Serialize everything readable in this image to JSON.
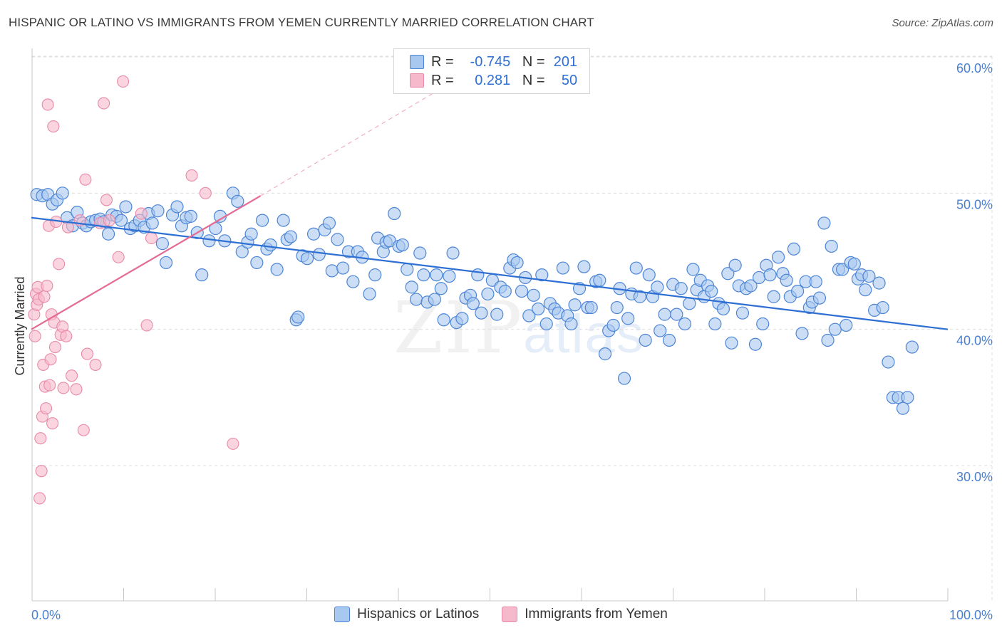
{
  "title": "HISPANIC OR LATINO VS IMMIGRANTS FROM YEMEN CURRENTLY MARRIED CORRELATION CHART",
  "source": "Source: ZipAtlas.com",
  "watermark": {
    "zip": "ZIP",
    "atlas": "atlas"
  },
  "legend_top": {
    "row1": {
      "r_label": "R =",
      "r_value": "-0.745",
      "n_label": "N =",
      "n_value": "201"
    },
    "row2": {
      "r_label": "R =",
      "r_value": "0.281",
      "n_label": "N =",
      "n_value": "50"
    }
  },
  "legend_bottom": {
    "series1": "Hispanics or Latinos",
    "series2": "Immigrants from Yemen"
  },
  "colors": {
    "blue_fill": "#a9c8f0",
    "blue_stroke": "#4d86d6",
    "blue_line": "#2e6fd4",
    "pink_fill": "#f6b9cc",
    "pink_stroke": "#e88aa8",
    "pink_line": "#e46a93",
    "grid": "#dedede",
    "tick_label": "#4a7fd0"
  },
  "chart_data": {
    "type": "scatter",
    "title": "HISPANIC OR LATINO VS IMMIGRANTS FROM YEMEN CURRENTLY MARRIED CORRELATION CHART",
    "xlabel": "",
    "ylabel": "Currently Married",
    "xlim": [
      0,
      100
    ],
    "ylim": [
      21,
      61
    ],
    "x_tick_labels": [
      "0.0%",
      "100.0%"
    ],
    "y_ticks": [
      30,
      40,
      50,
      60
    ],
    "y_tick_labels": [
      "30.0%",
      "40.0%",
      "50.0%",
      "60.0%"
    ],
    "grid": true,
    "legend": "bottom-center",
    "series": [
      {
        "name": "Hispanics or Latinos",
        "R": -0.745,
        "N": 201,
        "trend": {
          "x": [
            0,
            100
          ],
          "y": [
            48.2,
            40.0
          ],
          "style": "solid"
        },
        "points": [
          [
            0.6,
            49.9
          ],
          [
            1.2,
            49.8
          ],
          [
            1.8,
            49.9
          ],
          [
            2.3,
            49.2
          ],
          [
            2.8,
            49.5
          ],
          [
            3.4,
            50.0
          ],
          [
            3.9,
            48.2
          ],
          [
            4.5,
            47.6
          ],
          [
            5.0,
            48.6
          ],
          [
            5.6,
            47.8
          ],
          [
            6.0,
            47.6
          ],
          [
            6.5,
            47.9
          ],
          [
            7.0,
            48.0
          ],
          [
            7.5,
            48.1
          ],
          [
            7.9,
            47.9
          ],
          [
            8.4,
            47.0
          ],
          [
            8.8,
            48.4
          ],
          [
            9.3,
            48.3
          ],
          [
            9.8,
            48.0
          ],
          [
            10.3,
            49.0
          ],
          [
            10.8,
            47.4
          ],
          [
            11.3,
            47.6
          ],
          [
            11.8,
            48.0
          ],
          [
            12.3,
            47.5
          ],
          [
            12.8,
            48.5
          ],
          [
            13.2,
            47.8
          ],
          [
            13.8,
            48.7
          ],
          [
            14.3,
            46.3
          ],
          [
            14.7,
            44.9
          ],
          [
            15.4,
            48.4
          ],
          [
            15.9,
            49.0
          ],
          [
            16.4,
            47.6
          ],
          [
            16.9,
            48.2
          ],
          [
            17.4,
            48.3
          ],
          [
            18.1,
            47.1
          ],
          [
            18.6,
            44.0
          ],
          [
            19.4,
            46.5
          ],
          [
            20.1,
            47.4
          ],
          [
            20.6,
            48.3
          ],
          [
            21.1,
            46.5
          ],
          [
            22.0,
            50.0
          ],
          [
            22.5,
            49.4
          ],
          [
            23.0,
            45.7
          ],
          [
            23.6,
            46.4
          ],
          [
            24.0,
            47.0
          ],
          [
            24.6,
            44.9
          ],
          [
            25.2,
            48.0
          ],
          [
            25.7,
            45.9
          ],
          [
            26.1,
            46.2
          ],
          [
            26.8,
            44.4
          ],
          [
            27.5,
            48.0
          ],
          [
            27.9,
            46.6
          ],
          [
            28.3,
            46.8
          ],
          [
            28.9,
            40.7
          ],
          [
            29.1,
            40.9
          ],
          [
            29.6,
            45.4
          ],
          [
            30.1,
            45.2
          ],
          [
            30.8,
            47.0
          ],
          [
            31.4,
            45.5
          ],
          [
            32.0,
            47.3
          ],
          [
            32.5,
            47.8
          ],
          [
            32.8,
            44.3
          ],
          [
            33.4,
            46.6
          ],
          [
            34.0,
            44.5
          ],
          [
            34.6,
            45.7
          ],
          [
            35.1,
            43.5
          ],
          [
            35.6,
            45.7
          ],
          [
            36.1,
            45.3
          ],
          [
            36.9,
            42.6
          ],
          [
            37.5,
            44.0
          ],
          [
            37.8,
            46.7
          ],
          [
            38.4,
            45.7
          ],
          [
            38.7,
            46.4
          ],
          [
            39.1,
            46.5
          ],
          [
            39.6,
            48.5
          ],
          [
            40.1,
            46.1
          ],
          [
            40.5,
            46.2
          ],
          [
            41.0,
            44.4
          ],
          [
            41.5,
            43.1
          ],
          [
            42.0,
            42.2
          ],
          [
            42.4,
            45.6
          ],
          [
            42.8,
            44.0
          ],
          [
            43.2,
            42.0
          ],
          [
            44.0,
            42.2
          ],
          [
            44.2,
            44.0
          ],
          [
            44.7,
            43.0
          ],
          [
            45.0,
            40.7
          ],
          [
            45.6,
            43.9
          ],
          [
            46.0,
            45.6
          ],
          [
            46.4,
            40.5
          ],
          [
            47.0,
            40.8
          ],
          [
            47.4,
            42.3
          ],
          [
            47.9,
            42.5
          ],
          [
            48.2,
            41.9
          ],
          [
            48.7,
            44.0
          ],
          [
            49.1,
            41.2
          ],
          [
            49.8,
            42.6
          ],
          [
            50.3,
            43.6
          ],
          [
            50.8,
            41.1
          ],
          [
            51.2,
            43.1
          ],
          [
            51.7,
            42.8
          ],
          [
            52.2,
            44.5
          ],
          [
            52.6,
            45.1
          ],
          [
            53.0,
            44.9
          ],
          [
            53.5,
            42.8
          ],
          [
            53.9,
            43.8
          ],
          [
            54.3,
            41.0
          ],
          [
            54.8,
            42.5
          ],
          [
            55.3,
            41.5
          ],
          [
            55.7,
            44.0
          ],
          [
            56.2,
            40.4
          ],
          [
            56.6,
            41.9
          ],
          [
            57.1,
            41.5
          ],
          [
            57.5,
            41.2
          ],
          [
            58.0,
            44.5
          ],
          [
            58.5,
            41.0
          ],
          [
            58.9,
            40.4
          ],
          [
            59.3,
            41.8
          ],
          [
            59.8,
            43.0
          ],
          [
            60.3,
            44.6
          ],
          [
            60.7,
            41.6
          ],
          [
            61.1,
            41.6
          ],
          [
            61.6,
            43.5
          ],
          [
            62.0,
            43.6
          ],
          [
            62.6,
            38.2
          ],
          [
            63.0,
            39.9
          ],
          [
            63.5,
            40.3
          ],
          [
            63.9,
            41.6
          ],
          [
            64.2,
            43.0
          ],
          [
            64.7,
            36.4
          ],
          [
            65.1,
            40.8
          ],
          [
            65.5,
            42.6
          ],
          [
            66.0,
            44.5
          ],
          [
            66.4,
            42.4
          ],
          [
            67.0,
            39.2
          ],
          [
            67.4,
            44.0
          ],
          [
            67.8,
            42.4
          ],
          [
            68.3,
            43.1
          ],
          [
            68.6,
            39.9
          ],
          [
            69.1,
            41.1
          ],
          [
            69.6,
            39.2
          ],
          [
            70.0,
            43.3
          ],
          [
            70.4,
            41.1
          ],
          [
            70.9,
            43.0
          ],
          [
            71.3,
            40.4
          ],
          [
            71.8,
            41.9
          ],
          [
            72.2,
            44.4
          ],
          [
            72.6,
            42.9
          ],
          [
            73.0,
            43.6
          ],
          [
            73.4,
            42.4
          ],
          [
            73.8,
            43.2
          ],
          [
            74.2,
            42.8
          ],
          [
            74.6,
            40.4
          ],
          [
            75.0,
            41.9
          ],
          [
            75.5,
            41.5
          ],
          [
            76.0,
            44.1
          ],
          [
            76.4,
            39.0
          ],
          [
            76.8,
            44.7
          ],
          [
            77.2,
            43.2
          ],
          [
            77.6,
            41.2
          ],
          [
            78.0,
            43.0
          ],
          [
            78.5,
            43.2
          ],
          [
            79.0,
            38.9
          ],
          [
            79.4,
            43.8
          ],
          [
            79.8,
            40.4
          ],
          [
            80.2,
            44.7
          ],
          [
            80.6,
            44.0
          ],
          [
            81.0,
            42.4
          ],
          [
            81.5,
            45.3
          ],
          [
            82.0,
            44.1
          ],
          [
            82.4,
            43.6
          ],
          [
            82.8,
            42.4
          ],
          [
            83.2,
            45.9
          ],
          [
            83.6,
            42.8
          ],
          [
            84.1,
            39.7
          ],
          [
            84.5,
            43.5
          ],
          [
            84.9,
            41.6
          ],
          [
            85.2,
            42.0
          ],
          [
            85.6,
            43.5
          ],
          [
            86.0,
            42.3
          ],
          [
            86.5,
            47.8
          ],
          [
            86.9,
            39.2
          ],
          [
            87.3,
            46.1
          ],
          [
            87.7,
            40.0
          ],
          [
            88.1,
            44.4
          ],
          [
            88.5,
            44.4
          ],
          [
            88.9,
            40.3
          ],
          [
            89.4,
            44.9
          ],
          [
            89.8,
            44.8
          ],
          [
            90.2,
            43.7
          ],
          [
            90.6,
            44.0
          ],
          [
            91.0,
            42.9
          ],
          [
            91.4,
            43.9
          ],
          [
            92.0,
            41.4
          ],
          [
            92.5,
            43.4
          ],
          [
            92.9,
            41.6
          ],
          [
            93.5,
            37.6
          ],
          [
            94.0,
            35.0
          ],
          [
            94.6,
            35.0
          ],
          [
            95.1,
            34.2
          ],
          [
            95.6,
            35.0
          ],
          [
            96.1,
            38.7
          ]
        ]
      },
      {
        "name": "Immigrants from Yemen",
        "R": 0.281,
        "N": 50,
        "trend": {
          "x": [
            0,
            25
          ],
          "y": [
            40.0,
            49.8
          ],
          "style": "solid",
          "extension_to": [
            48,
            59.0
          ],
          "extension_style": "dashed"
        },
        "points": [
          [
            0.3,
            41.1
          ],
          [
            0.4,
            39.5
          ],
          [
            0.5,
            42.6
          ],
          [
            0.6,
            41.8
          ],
          [
            0.7,
            43.1
          ],
          [
            0.8,
            42.2
          ],
          [
            0.9,
            27.6
          ],
          [
            1.0,
            32.0
          ],
          [
            1.1,
            29.6
          ],
          [
            1.2,
            33.6
          ],
          [
            1.3,
            37.4
          ],
          [
            1.4,
            42.4
          ],
          [
            1.5,
            35.8
          ],
          [
            1.6,
            34.2
          ],
          [
            1.7,
            43.2
          ],
          [
            1.8,
            56.5
          ],
          [
            1.9,
            47.6
          ],
          [
            2.0,
            35.9
          ],
          [
            2.1,
            37.8
          ],
          [
            2.2,
            41.1
          ],
          [
            2.3,
            33.1
          ],
          [
            2.4,
            54.9
          ],
          [
            2.5,
            40.5
          ],
          [
            2.6,
            38.7
          ],
          [
            2.7,
            47.9
          ],
          [
            3.0,
            44.8
          ],
          [
            3.2,
            39.6
          ],
          [
            3.4,
            40.2
          ],
          [
            3.5,
            35.7
          ],
          [
            3.8,
            39.5
          ],
          [
            4.0,
            47.5
          ],
          [
            4.4,
            36.6
          ],
          [
            4.9,
            35.6
          ],
          [
            5.3,
            48.0
          ],
          [
            5.7,
            32.6
          ],
          [
            5.9,
            51.0
          ],
          [
            6.1,
            38.2
          ],
          [
            7.0,
            37.4
          ],
          [
            7.5,
            47.8
          ],
          [
            7.9,
            56.6
          ],
          [
            8.2,
            49.5
          ],
          [
            8.5,
            48.0
          ],
          [
            9.5,
            45.3
          ],
          [
            10.0,
            58.2
          ],
          [
            12.0,
            48.5
          ],
          [
            12.6,
            40.3
          ],
          [
            13.1,
            46.7
          ],
          [
            17.5,
            51.3
          ],
          [
            19.0,
            50.0
          ],
          [
            22.0,
            31.6
          ]
        ]
      }
    ]
  }
}
